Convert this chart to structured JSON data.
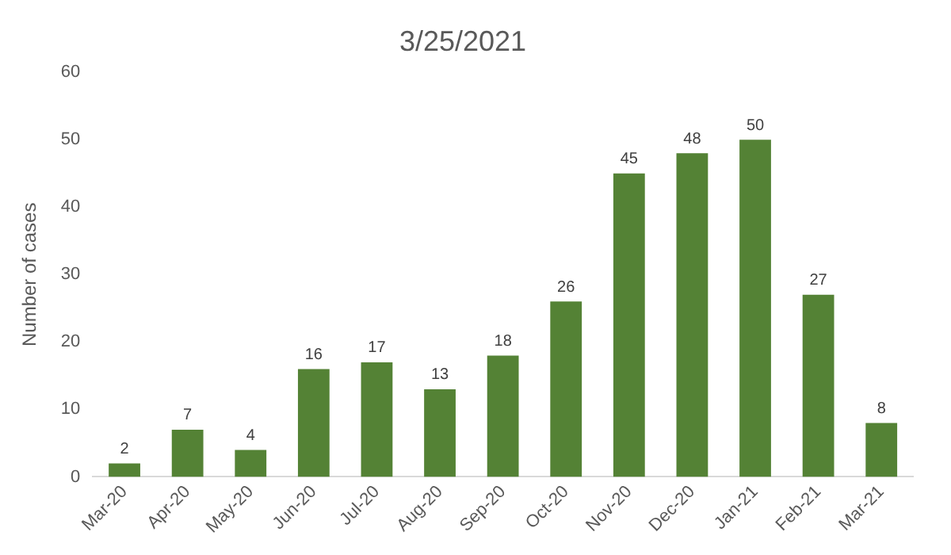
{
  "chart_data": {
    "type": "bar",
    "title": "3/25/2021",
    "ylabel": "Number of cases",
    "categories": [
      "Mar-20",
      "Apr-20",
      "May-20",
      "Jun-20",
      "Jul-20",
      "Aug-20",
      "Sep-20",
      "Oct-20",
      "Nov-20",
      "Dec-20",
      "Jan-21",
      "Feb-21",
      "Mar-21"
    ],
    "values": [
      2,
      7,
      4,
      16,
      17,
      13,
      18,
      26,
      45,
      48,
      50,
      27,
      8
    ],
    "color": "#548235",
    "ylim": [
      0,
      60
    ],
    "yticks": [
      0,
      10,
      20,
      30,
      40,
      50,
      60
    ],
    "data_labels": true,
    "grid": false,
    "legend": false
  }
}
